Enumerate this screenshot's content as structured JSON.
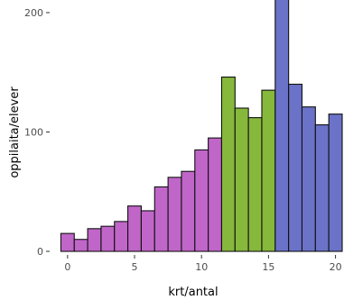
{
  "chart_data": {
    "type": "bar",
    "title": "",
    "xlabel": "krt/antal",
    "ylabel": "oppilaita/elever",
    "xlim": [
      -1,
      20.5
    ],
    "ylim": [
      0,
      210
    ],
    "x_ticks": [
      0,
      5,
      10,
      15,
      20
    ],
    "y_ticks": [
      0,
      100,
      200
    ],
    "grid": false,
    "legend": "none",
    "bin_width": 1,
    "colors": {
      "low": "#c066c8",
      "mid": "#86b83c",
      "high": "#6b73c8"
    },
    "bins": [
      {
        "x": 0,
        "value": 15,
        "group": "low"
      },
      {
        "x": 1,
        "value": 10,
        "group": "low"
      },
      {
        "x": 2,
        "value": 19,
        "group": "low"
      },
      {
        "x": 3,
        "value": 21,
        "group": "low"
      },
      {
        "x": 4,
        "value": 25,
        "group": "low"
      },
      {
        "x": 5,
        "value": 38,
        "group": "low"
      },
      {
        "x": 6,
        "value": 34,
        "group": "low"
      },
      {
        "x": 7,
        "value": 54,
        "group": "low"
      },
      {
        "x": 8,
        "value": 62,
        "group": "low"
      },
      {
        "x": 9,
        "value": 67,
        "group": "low"
      },
      {
        "x": 10,
        "value": 85,
        "group": "low"
      },
      {
        "x": 11,
        "value": 95,
        "group": "low"
      },
      {
        "x": 12,
        "value": 146,
        "group": "mid"
      },
      {
        "x": 13,
        "value": 120,
        "group": "mid"
      },
      {
        "x": 14,
        "value": 112,
        "group": "mid"
      },
      {
        "x": 15,
        "value": 135,
        "group": "mid"
      },
      {
        "x": 16,
        "value": 220,
        "group": "high"
      },
      {
        "x": 17,
        "value": 140,
        "group": "high"
      },
      {
        "x": 18,
        "value": 121,
        "group": "high"
      },
      {
        "x": 19,
        "value": 106,
        "group": "high"
      },
      {
        "x": 20,
        "value": 115,
        "group": "high"
      }
    ]
  }
}
